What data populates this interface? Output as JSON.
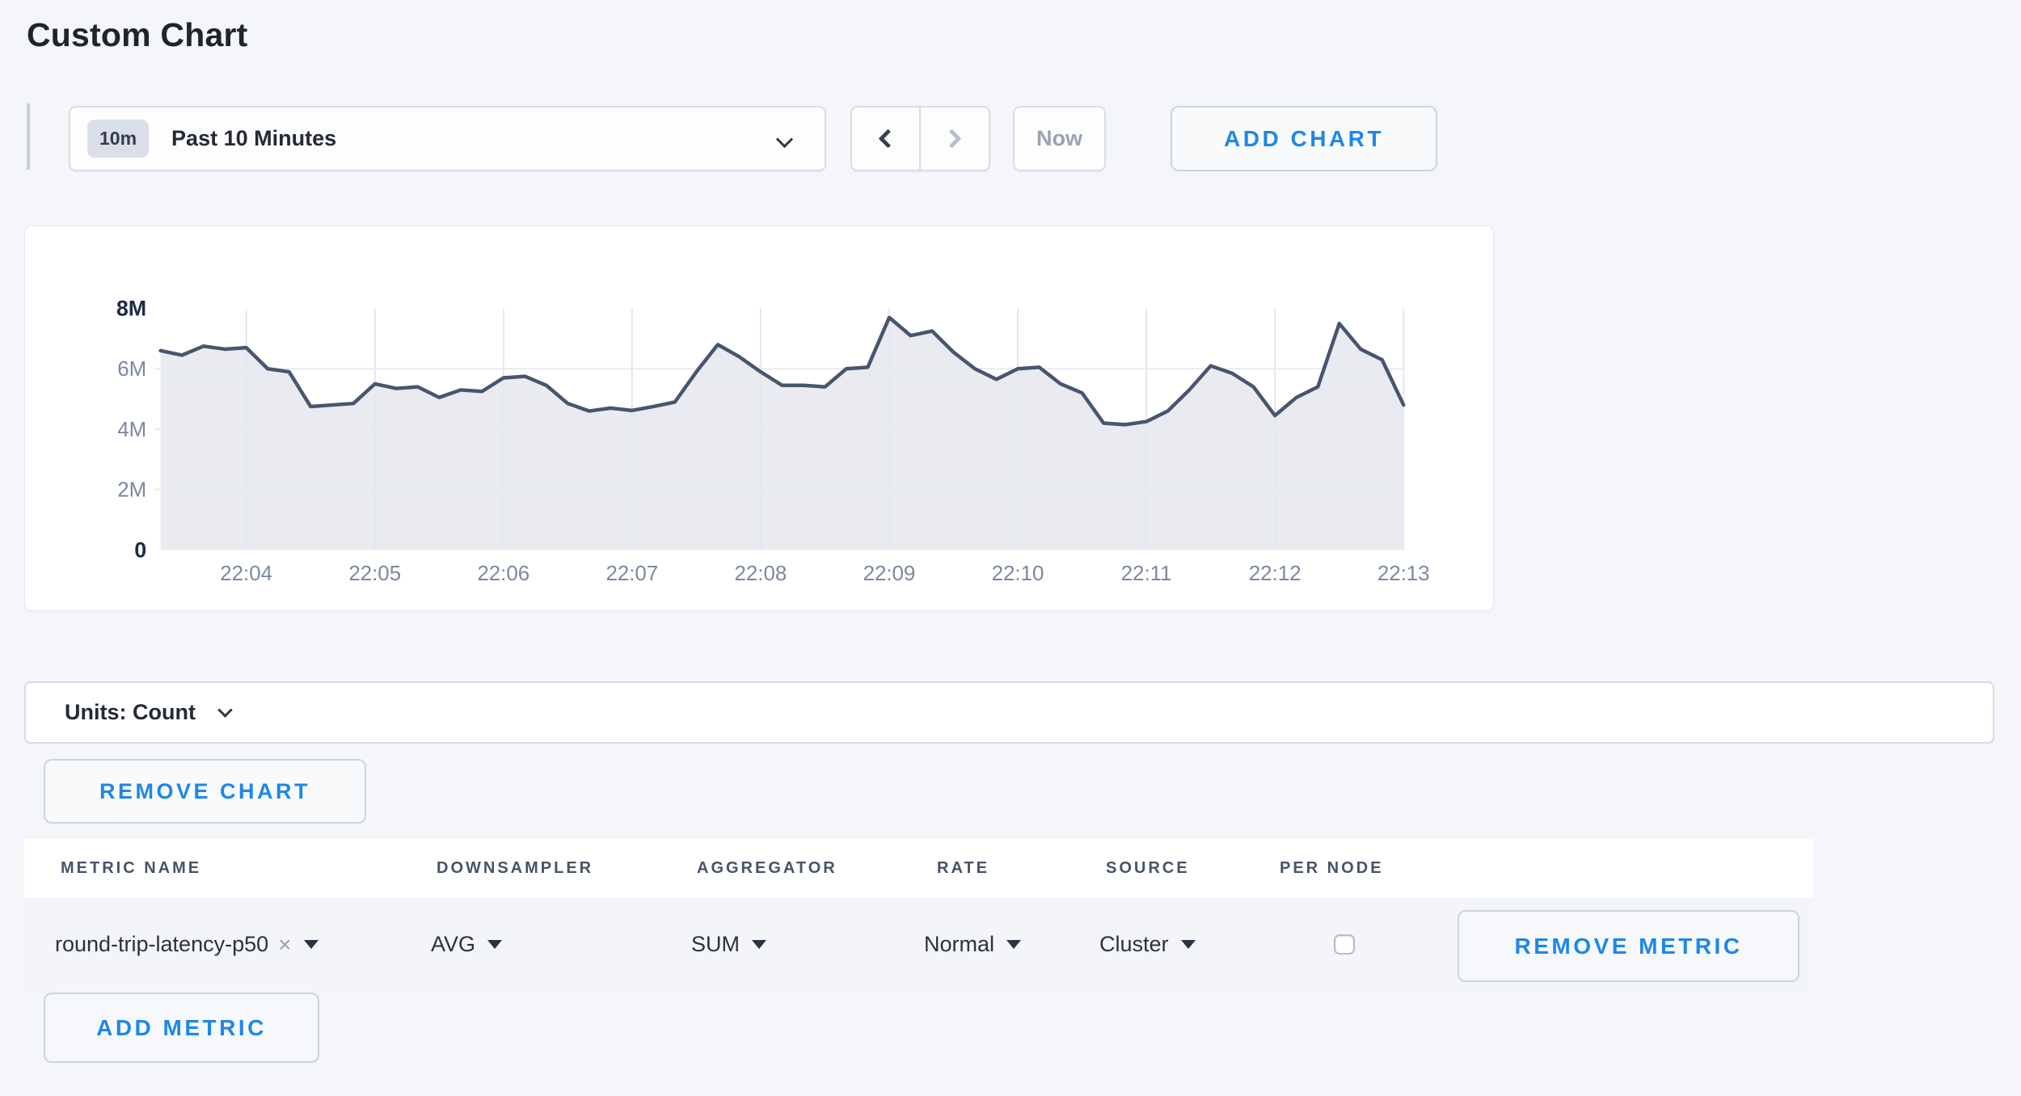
{
  "page": {
    "title": "Custom Chart"
  },
  "toolbar": {
    "time_window_badge": "10m",
    "time_window_label": "Past 10 Minutes",
    "now_label": "Now",
    "add_chart_label": "ADD CHART"
  },
  "icons": {
    "time_window_chevron": "chevron-down",
    "prev_arrow": "chevron-left",
    "next_arrow": "chevron-right",
    "units_chevron": "chevron-down",
    "dropdown_caret": "triangle-down",
    "metric_clear": "×"
  },
  "chart_data": {
    "type": "area",
    "title": "",
    "xlabel": "",
    "ylabel": "",
    "unit": "Count",
    "ylim": [
      0,
      8000000
    ],
    "y_ticks": [
      {
        "label": "0",
        "value_millions": 0,
        "emphasized": true
      },
      {
        "label": "2M",
        "value_millions": 2,
        "emphasized": false
      },
      {
        "label": "4M",
        "value_millions": 4,
        "emphasized": false
      },
      {
        "label": "6M",
        "value_millions": 6,
        "emphasized": false
      },
      {
        "label": "8M",
        "value_millions": 8,
        "emphasized": true
      }
    ],
    "x_ticks": [
      "22:04",
      "22:05",
      "22:06",
      "22:07",
      "22:08",
      "22:09",
      "22:10",
      "22:11",
      "22:12",
      "22:13"
    ],
    "grid": true,
    "legend": "none",
    "line_color": "#47566e",
    "fill_color": "#e9ebf0",
    "x": [
      "22:03:20",
      "22:03:30",
      "22:03:40",
      "22:03:50",
      "22:04:00",
      "22:04:10",
      "22:04:20",
      "22:04:30",
      "22:04:40",
      "22:04:50",
      "22:05:00",
      "22:05:10",
      "22:05:20",
      "22:05:30",
      "22:05:40",
      "22:05:50",
      "22:06:00",
      "22:06:10",
      "22:06:20",
      "22:06:30",
      "22:06:40",
      "22:06:50",
      "22:07:00",
      "22:07:10",
      "22:07:20",
      "22:07:30",
      "22:07:40",
      "22:07:50",
      "22:08:00",
      "22:08:10",
      "22:08:20",
      "22:08:30",
      "22:08:40",
      "22:08:50",
      "22:09:00",
      "22:09:10",
      "22:09:20",
      "22:09:30",
      "22:09:40",
      "22:09:50",
      "22:10:00",
      "22:10:10",
      "22:10:20",
      "22:10:30",
      "22:10:40",
      "22:10:50",
      "22:11:00",
      "22:11:10",
      "22:11:20",
      "22:11:30",
      "22:11:40",
      "22:11:50",
      "22:12:00",
      "22:12:10",
      "22:12:20",
      "22:12:30",
      "22:12:40",
      "22:12:50",
      "22:13:00"
    ],
    "values_millions": [
      6.6,
      6.45,
      6.75,
      6.65,
      6.7,
      6.0,
      5.9,
      4.75,
      4.8,
      4.85,
      5.5,
      5.35,
      5.4,
      5.05,
      5.3,
      5.25,
      5.7,
      5.75,
      5.45,
      4.85,
      4.6,
      4.7,
      4.62,
      4.75,
      4.9,
      5.9,
      6.8,
      6.4,
      5.9,
      5.45,
      5.45,
      5.4,
      6.0,
      6.05,
      7.7,
      7.1,
      7.25,
      6.55,
      6.0,
      5.65,
      6.0,
      6.05,
      5.5,
      5.2,
      4.2,
      4.15,
      4.25,
      4.6,
      5.3,
      6.1,
      5.85,
      5.4,
      4.45,
      5.05,
      5.4,
      7.5,
      6.65,
      6.3,
      4.8
    ]
  },
  "units_bar": {
    "label": "Units: Count"
  },
  "chart_actions": {
    "remove_chart_label": "REMOVE CHART",
    "add_metric_label": "ADD METRIC"
  },
  "metrics_table": {
    "headers": [
      "METRIC NAME",
      "DOWNSAMPLER",
      "AGGREGATOR",
      "RATE",
      "SOURCE",
      "PER NODE"
    ],
    "rows": [
      {
        "metric_name": "round-trip-latency-p50",
        "clear_glyph": "×",
        "downsampler": "AVG",
        "aggregator": "SUM",
        "rate": "Normal",
        "source": "Cluster",
        "per_node_checked": false,
        "remove_label": "REMOVE METRIC"
      }
    ]
  },
  "colors": {
    "accent_blue": "#1e87e8",
    "page_background": "#f4f6f9",
    "card_background": "#ffffff",
    "chart_line": "#47566e",
    "chart_fill": "#e9ebf0",
    "grid_line": "#e3e8f1",
    "axis_label": "#7b89a0",
    "axis_label_emphasis": "#1e2b49",
    "header_text": "#47536a",
    "disabled_text": "#9aa3b2",
    "row_background": "#f3f5f8"
  }
}
